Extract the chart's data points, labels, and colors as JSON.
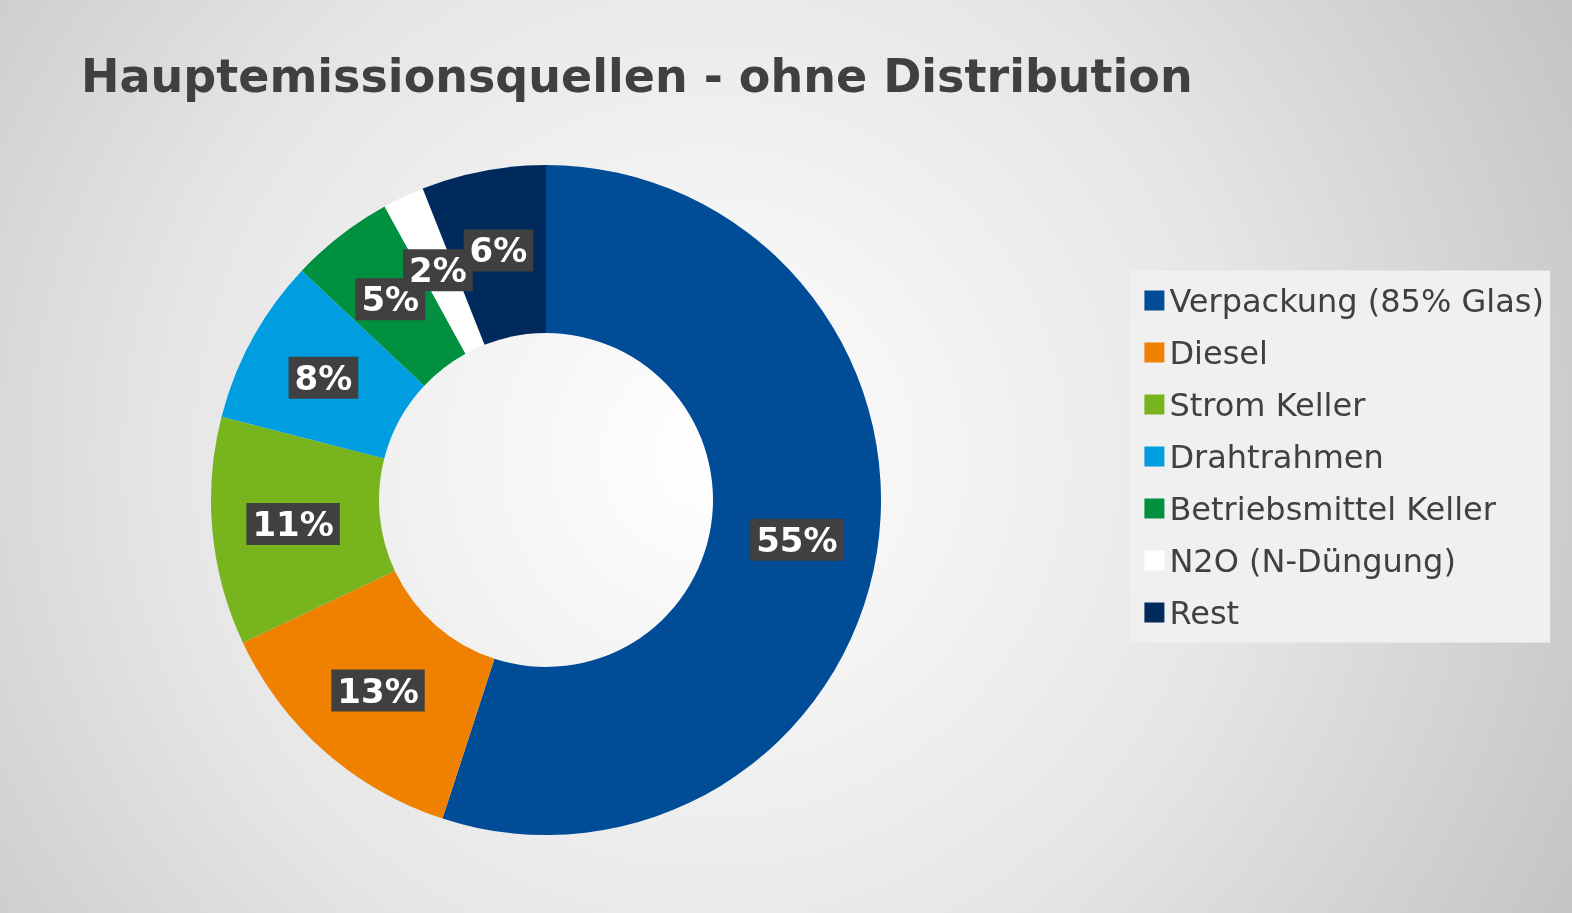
{
  "chart_data": {
    "type": "donut",
    "title": "Hauptemissionsquellen - ohne Distribution",
    "categories": [
      "Verpackung (85% Glas)",
      "Diesel",
      "Strom Keller",
      "Drahtrahmen",
      "Betriebsmittel Keller",
      "N2O (N-Düngung)",
      "Rest"
    ],
    "values": [
      55,
      13,
      11,
      8,
      5,
      2,
      6
    ],
    "colors": [
      "#004c97",
      "#f08000",
      "#78b41e",
      "#009ee0",
      "#009040",
      "#ffffff",
      "#002a5c"
    ],
    "value_labels": [
      "55%",
      "13%",
      "11%",
      "8%",
      "5%",
      "2%",
      "6%"
    ],
    "legend": "right"
  }
}
